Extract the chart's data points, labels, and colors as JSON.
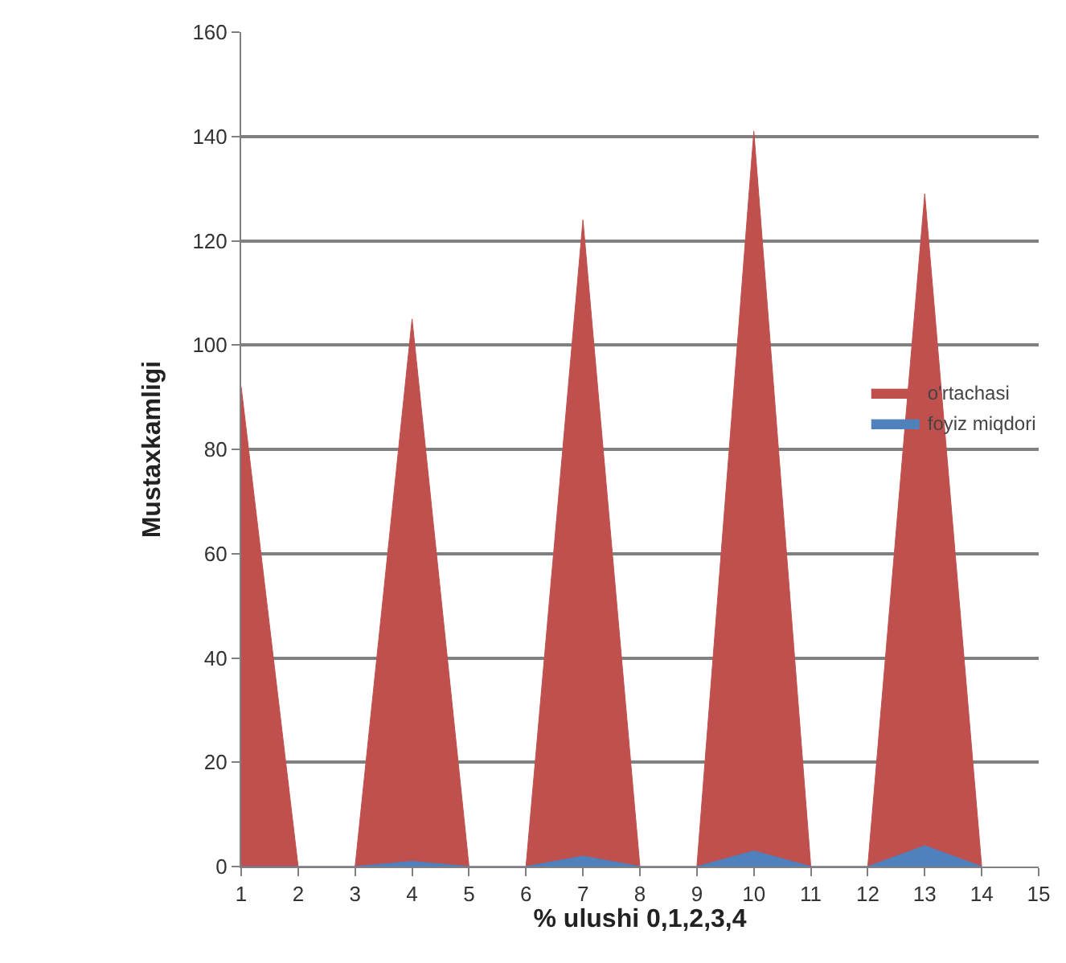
{
  "chart_data": {
    "type": "area",
    "xlabel": "% ulushi 0,1,2,3,4",
    "ylabel": "Mustaxkamligi",
    "x": [
      1,
      2,
      3,
      4,
      5,
      6,
      7,
      8,
      9,
      10,
      11,
      12,
      13,
      14
    ],
    "series": [
      {
        "name": "o'rtachasi",
        "color": "#c0504d",
        "values": [
          92,
          0,
          0,
          105,
          0,
          0,
          124,
          0,
          0,
          141,
          0,
          0,
          129,
          0
        ]
      },
      {
        "name": "foyiz miqdori",
        "color": "#4f81bd",
        "values": [
          0,
          0,
          0,
          1,
          0,
          0,
          2,
          0,
          0,
          3,
          0,
          0,
          4,
          0
        ]
      }
    ],
    "xlim": [
      1,
      15
    ],
    "xticks": [
      1,
      2,
      3,
      4,
      5,
      6,
      7,
      8,
      9,
      10,
      11,
      12,
      13,
      14,
      15
    ],
    "ylim": [
      0,
      160
    ],
    "yticks": [
      0,
      20,
      40,
      60,
      80,
      100,
      120,
      140,
      160
    ],
    "grid": "y",
    "legend": "right"
  }
}
